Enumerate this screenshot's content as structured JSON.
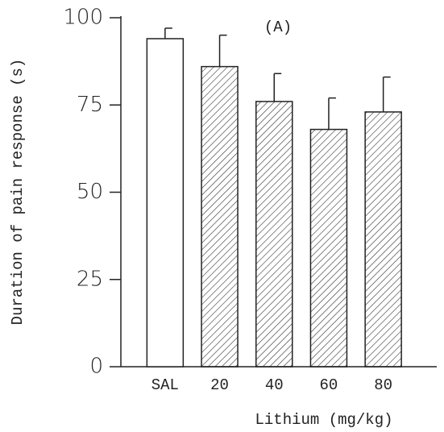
{
  "chart_data": {
    "type": "bar",
    "annotation": "(A)",
    "xlabel": "Lithium (mg/kg)",
    "ylabel": "Duration of pain response (s)",
    "categories": [
      "SAL",
      "20",
      "40",
      "60",
      "80"
    ],
    "values": [
      94,
      86,
      76,
      68,
      73
    ],
    "errors": [
      3,
      9,
      8,
      9,
      10
    ],
    "bar_styles": [
      "open",
      "hatched",
      "hatched",
      "hatched",
      "hatched"
    ],
    "color": "#222222",
    "ylim": [
      0,
      100
    ],
    "yticks": [
      0,
      25,
      50,
      75,
      100
    ],
    "grid": false
  }
}
